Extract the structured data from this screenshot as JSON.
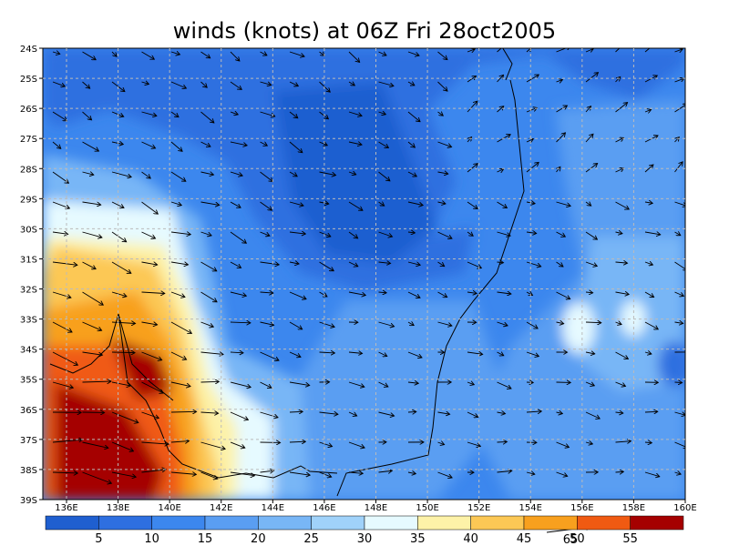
{
  "title": "winds (knots) at 06Z Fri 28oct2005",
  "lat_labels": [
    "24S",
    "25S",
    "26S",
    "27S",
    "28S",
    "29S",
    "30S",
    "31S",
    "32S",
    "33S",
    "34S",
    "35S",
    "36S",
    "37S",
    "38S",
    "39S"
  ],
  "lon_labels": [
    "136E",
    "138E",
    "140E",
    "142E",
    "144E",
    "146E",
    "148E",
    "150E",
    "152E",
    "154E",
    "156E",
    "158E",
    "160E"
  ],
  "colorbar": {
    "labels": [
      "5",
      "10",
      "15",
      "20",
      "25",
      "30",
      "35",
      "40",
      "45",
      "50",
      "55"
    ],
    "colors": [
      "#1f5fd0",
      "#2e6fe0",
      "#3c87ee",
      "#5a9ef2",
      "#78b6f6",
      "#a0d2fa",
      "#e6faff",
      "#fdf2a8",
      "#fcc855",
      "#f8a01e",
      "#f05a12",
      "#a50000"
    ]
  },
  "reference_vector": "65"
}
